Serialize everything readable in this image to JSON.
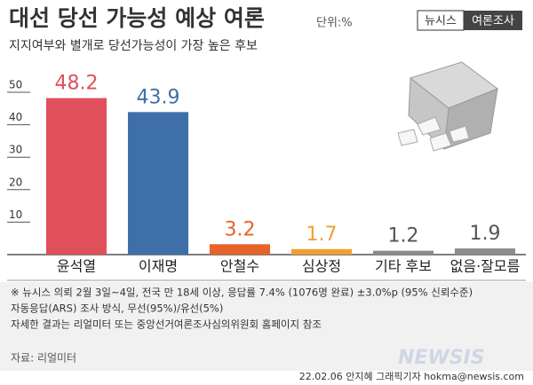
{
  "chart_data": {
    "type": "bar",
    "title": "대선 당선 가능성 예상 여론",
    "unit": "단위:%",
    "brand": [
      "뉴시스",
      "여론조사"
    ],
    "subtitle": "지지여부와 별개로 당선가능성이 가장 높은 후보",
    "categories": [
      "윤석열",
      "이재명",
      "안철수",
      "심상정",
      "기타 후보",
      "없음·잘모름"
    ],
    "values": [
      48.2,
      43.9,
      3.2,
      1.7,
      1.2,
      1.9
    ],
    "colors": [
      "#e0505a",
      "#3f6fa8",
      "#e8632a",
      "#f0a030",
      "#8c8c8c",
      "#8c8c8c"
    ],
    "label_colors": [
      "#e0505a",
      "#3f6fa8",
      "#e8632a",
      "#f0a030",
      "#555555",
      "#555555"
    ],
    "ylim": [
      0,
      50
    ],
    "yticks": [
      10,
      20,
      30,
      40,
      50
    ],
    "notes": [
      "※ 뉴시스 의뢰 2월 3일~4일, 전국 만 18세 이상, 응답률 7.4% (1076명 완료) ±3.0%p (95% 신뢰수준)",
      "자동응답(ARS) 조사 방식, 무선(95%)/유선(5%)",
      "자세한 결과는 리얼미터 또는 중앙선거여론조사심의위원회 홈페이지 참조"
    ],
    "source": "자료: 리얼미터",
    "credit": "22.02.06 안지혜 그래픽기자 hokma@newsis.com",
    "watermark": "NEWSIS"
  }
}
